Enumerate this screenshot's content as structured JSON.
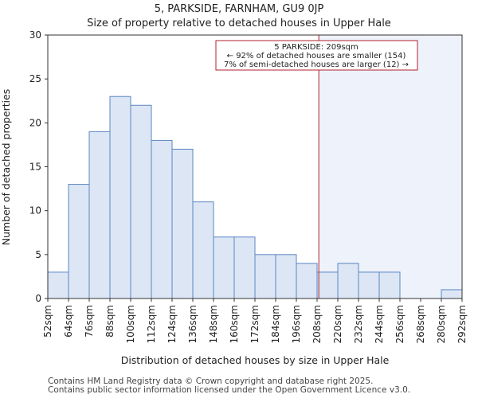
{
  "chart_data": {
    "type": "bar",
    "title_line1": "5, PARKSIDE, FARNHAM, GU9 0JP",
    "title_line2": "Size of property relative to detached houses in Upper Hale",
    "xlabel": "Distribution of detached houses by size in Upper Hale",
    "ylabel": "Number of detached properties",
    "bin_edges": [
      52,
      64,
      76,
      88,
      100,
      112,
      124,
      136,
      148,
      160,
      172,
      184,
      196,
      208,
      220,
      232,
      244,
      256,
      268,
      280,
      292
    ],
    "tick_labels": [
      "52sqm",
      "64sqm",
      "76sqm",
      "88sqm",
      "100sqm",
      "112sqm",
      "124sqm",
      "136sqm",
      "148sqm",
      "160sqm",
      "172sqm",
      "184sqm",
      "196sqm",
      "208sqm",
      "220sqm",
      "232sqm",
      "244sqm",
      "256sqm",
      "268sqm",
      "280sqm",
      "292sqm"
    ],
    "values": [
      3,
      13,
      19,
      23,
      22,
      18,
      17,
      11,
      7,
      7,
      5,
      5,
      4,
      3,
      4,
      3,
      3,
      0,
      0,
      1
    ],
    "ylim": [
      0,
      30
    ],
    "yticks": [
      0,
      5,
      10,
      15,
      20,
      25,
      30
    ],
    "property_size": 209,
    "annotation": {
      "line1": "5 PARKSIDE: 209sqm",
      "line2": "← 92% of detached houses are smaller (154)",
      "line3": "7% of semi-detached houses are larger (12) →"
    },
    "colors": {
      "bar_fill": "#dce6f5",
      "bar_edge": "#5b85c1",
      "marker": "#b0202e",
      "highlight": "#eef2fb",
      "axis": "#333333"
    }
  },
  "footer": {
    "line1": "Contains HM Land Registry data © Crown copyright and database right 2025.",
    "line2": "Contains public sector information licensed under the Open Government Licence v3.0."
  }
}
